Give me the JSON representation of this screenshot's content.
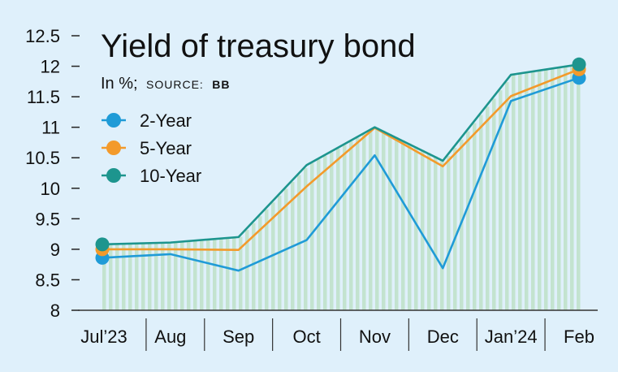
{
  "chart_data": {
    "type": "line",
    "title": "Yield of treasury bond",
    "subtitle_unit": "In %;",
    "source_label": "SOURCE:",
    "source_value": "BB",
    "categories": [
      "Jul’23",
      "Aug",
      "Sep",
      "Oct",
      "Nov",
      "Dec",
      "Jan’24",
      "Feb"
    ],
    "y_ticks": [
      "12.5",
      "12",
      "11.5",
      "11",
      "10.5",
      "10",
      "9.5",
      "9",
      "8.5",
      "8"
    ],
    "ylim": [
      8,
      12.5
    ],
    "grid": false,
    "legend_position": "top-left",
    "series": [
      {
        "name": "2-Year",
        "color": "#1f9bd7",
        "values": [
          8.86,
          8.92,
          8.65,
          9.15,
          10.54,
          8.69,
          11.43,
          11.81
        ]
      },
      {
        "name": "5-Year",
        "color": "#f39a2b",
        "values": [
          9.0,
          9.0,
          8.99,
          10.03,
          10.99,
          10.36,
          11.51,
          11.95
        ]
      },
      {
        "name": "10-Year",
        "color": "#1d958e",
        "values": [
          9.08,
          9.11,
          9.2,
          10.38,
          11.0,
          10.45,
          11.86,
          12.03
        ]
      }
    ]
  }
}
